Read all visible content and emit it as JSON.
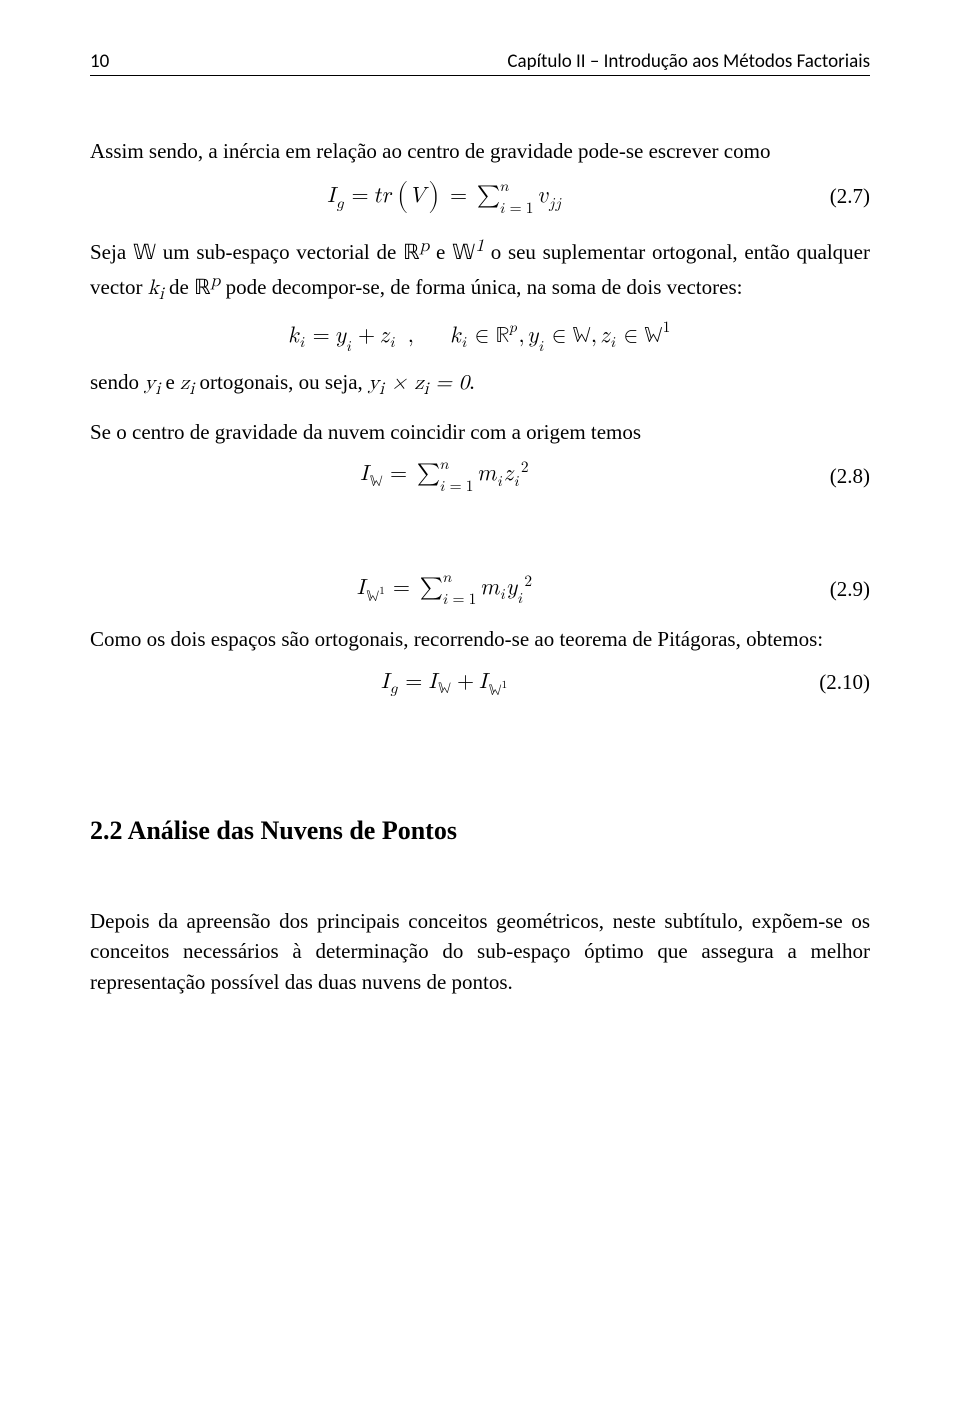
{
  "header": {
    "pagenum": "10",
    "chapter": "Capítulo II – Introdução aos Métodos Factoriais"
  },
  "para1": "Assim sendo, a inércia em relação ao centro de gravidade pode-se escrever como",
  "eq27_num": "(2.7)",
  "para2_a": "Seja 𝕎 um sub-espaço vectorial de ℝ",
  "para2_b": " e 𝕎",
  "para2_c": " o seu suplementar ortogonal, então qualquer vector ",
  "para2_d": " de ℝ",
  "para2_e": " pode decompor-se, de forma única, na soma de dois vectores:",
  "para3_a": "sendo ",
  "para3_b": " e ",
  "para3_c": " ortogonais, ou seja, ",
  "para4": "Se o centro de gravidade da nuvem coincidir com a origem temos",
  "eq28_num": "(2.8)",
  "eq29_num": "(2.9)",
  "para5": "Como os dois espaços são ortogonais, recorrendo-se ao teorema de Pitágoras, obtemos:",
  "eq210_num": "(2.10)",
  "section_title": "2.2 Análise das Nuvens de Pontos",
  "para6": "Depois da apreensão dos principais conceitos geométricos, neste subtítulo, expõem-se os conceitos necessários à determinação do sub-espaço óptimo que assegura a melhor representação possível das duas nuvens de pontos."
}
